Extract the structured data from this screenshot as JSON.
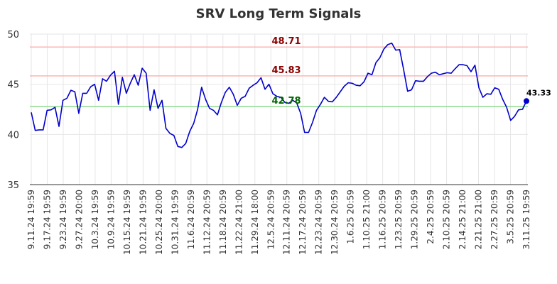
{
  "chart_data": {
    "type": "line",
    "title": "SRV Long Term Signals",
    "xlabel": "",
    "ylabel": "",
    "ylim": [
      35,
      50
    ],
    "yticks": [
      35,
      40,
      45,
      50
    ],
    "grid": true,
    "legend": "none",
    "colors": {
      "line": "#0000cc",
      "grid": "#e6e6e6",
      "axis": "#333333",
      "upper_line": "#ffb3b3",
      "upper_label": "#8b0000",
      "lower_line": "#8fdc8f",
      "lower_label": "#006400",
      "last_point": "#0000cc"
    },
    "x_tick_labels": [
      "9.11.24 19:59",
      "9.17.24 19:59",
      "9.23.24 19:59",
      "9.27.24 20:00",
      "10.3.24 19:59",
      "10.9.24 19:59",
      "10.15.24 19:59",
      "10.21.24 19:59",
      "10.25.24 20:00",
      "10.31.24 19:59",
      "11.6.24 20:59",
      "11.12.24 20:59",
      "11.18.24 20:59",
      "11.22.24 21:00",
      "11.29.24 18:00",
      "12.5.24 20:59",
      "12.11.24 20:59",
      "12.17.24 20:59",
      "12.23.24 20:59",
      "12.30.24 20:59",
      "1.6.25 20:59",
      "1.10.25 21:00",
      "1.16.25 20:59",
      "1.23.25 20:59",
      "1.29.25 20:59",
      "2.4.25 20:59",
      "2.10.25 20:59",
      "2.14.25 21:00",
      "2.21.25 21:00",
      "2.27.25 20:59",
      "3.5.25 20:59",
      "3.11.25 19:59"
    ],
    "values": [
      42.2,
      40.4,
      40.45,
      40.45,
      42.4,
      42.45,
      42.7,
      40.8,
      43.4,
      43.6,
      44.4,
      44.25,
      42.1,
      44.1,
      44.1,
      44.75,
      45.0,
      43.4,
      45.55,
      45.3,
      45.9,
      46.3,
      43.0,
      45.7,
      44.1,
      45.1,
      45.95,
      44.9,
      46.6,
      46.1,
      42.4,
      44.45,
      42.6,
      43.4,
      40.6,
      40.1,
      39.9,
      38.8,
      38.7,
      39.1,
      40.3,
      41.1,
      42.5,
      44.7,
      43.5,
      42.6,
      42.4,
      41.95,
      43.2,
      44.2,
      44.7,
      44.0,
      42.9,
      43.6,
      43.8,
      44.6,
      44.9,
      45.15,
      45.65,
      44.5,
      45.0,
      44.05,
      43.8,
      43.7,
      43.2,
      43.1,
      43.4,
      43.15,
      42.1,
      40.2,
      40.2,
      41.2,
      42.4,
      43.0,
      43.7,
      43.3,
      43.25,
      43.7,
      44.25,
      44.8,
      45.15,
      45.1,
      44.9,
      44.85,
      45.25,
      46.1,
      45.95,
      47.15,
      47.65,
      48.5,
      48.95,
      49.1,
      48.4,
      48.45,
      46.45,
      44.3,
      44.45,
      45.35,
      45.3,
      45.3,
      45.75,
      46.1,
      46.2,
      45.95,
      46.05,
      46.15,
      46.1,
      46.55,
      46.95,
      46.95,
      46.85,
      46.25,
      46.9,
      44.65,
      43.7,
      44.05,
      44.0,
      44.65,
      44.5,
      43.5,
      42.7,
      41.4,
      41.8,
      42.45,
      42.5,
      43.33
    ],
    "horizontal_lines": [
      {
        "value": 48.71,
        "label": "48.71"
      },
      {
        "value": 45.83,
        "label": "45.83"
      },
      {
        "value": 42.78,
        "label": "42.78"
      }
    ],
    "last_value_label": "43.33"
  }
}
